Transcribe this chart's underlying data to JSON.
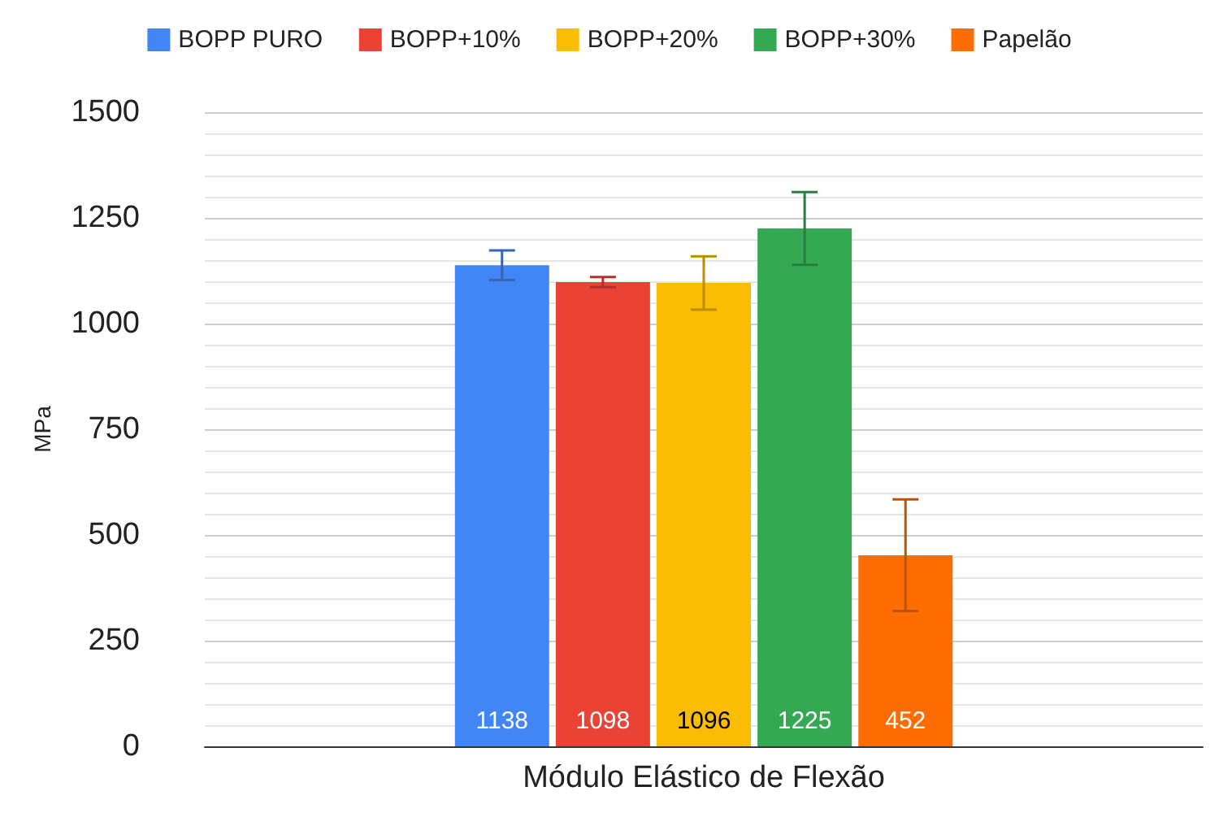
{
  "chart_data": {
    "type": "bar",
    "categories": [
      "Módulo Elástico de Flexão"
    ],
    "ylabel": "MPa",
    "ylim": [
      0,
      1500
    ],
    "yticks": [
      0,
      250,
      500,
      750,
      1000,
      1250,
      1500
    ],
    "grid": "y",
    "legend": "top",
    "data_labels": true,
    "series": [
      {
        "name": "BOPP PURO",
        "color": "#4285f4",
        "values": [
          1138
        ],
        "errors": [
          35
        ]
      },
      {
        "name": "BOPP+10%",
        "color": "#ea4335",
        "values": [
          1098
        ],
        "errors": [
          12
        ]
      },
      {
        "name": "BOPP+20%",
        "color": "#fbbc04",
        "values": [
          1096
        ],
        "errors": [
          63
        ]
      },
      {
        "name": "BOPP+30%",
        "color": "#34a853",
        "values": [
          1225
        ],
        "errors": [
          86
        ]
      },
      {
        "name": "Papelão",
        "color": "#ff6d01",
        "values": [
          452
        ],
        "errors": [
          132
        ]
      }
    ]
  }
}
